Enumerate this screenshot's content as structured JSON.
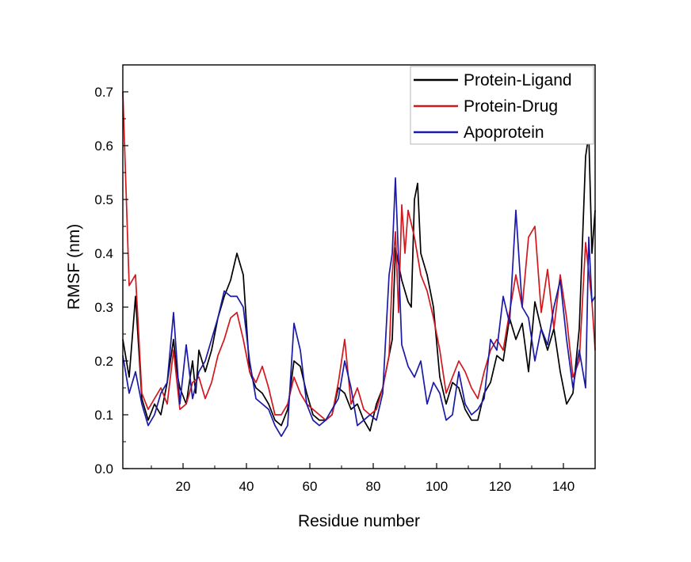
{
  "chart_data": {
    "type": "line",
    "title": "",
    "xlabel": "Residue number",
    "ylabel": "RMSF (nm)",
    "xlim": [
      1,
      150
    ],
    "ylim": [
      0.0,
      0.75
    ],
    "xticks": [
      20,
      40,
      60,
      80,
      100,
      120,
      140
    ],
    "yticks": [
      "0.0",
      "0.1",
      "0.2",
      "0.3",
      "0.4",
      "0.5",
      "0.6",
      "0.7"
    ],
    "grid": false,
    "legend_position": "top-right",
    "colors": {
      "Protein-Ligand": "#000000",
      "Protein-Drug": "#d0181e",
      "Apoprotein": "#1a1aa6"
    },
    "series": [
      {
        "name": "Protein-Ligand",
        "color": "#000000",
        "x": [
          1,
          3,
          5,
          7,
          9,
          11,
          13,
          15,
          17,
          18,
          19,
          21,
          23,
          24,
          25,
          27,
          29,
          31,
          33,
          35,
          37,
          39,
          41,
          43,
          45,
          47,
          49,
          51,
          53,
          55,
          57,
          59,
          61,
          63,
          65,
          67,
          69,
          71,
          73,
          75,
          77,
          79,
          81,
          83,
          85,
          86,
          87,
          89,
          91,
          92,
          93,
          94,
          95,
          97,
          99,
          101,
          103,
          105,
          107,
          109,
          111,
          113,
          115,
          117,
          119,
          121,
          123,
          125,
          127,
          129,
          131,
          133,
          135,
          137,
          139,
          141,
          143,
          145,
          147,
          148,
          149,
          150
        ],
        "values": [
          0.24,
          0.17,
          0.32,
          0.13,
          0.09,
          0.12,
          0.1,
          0.16,
          0.24,
          0.18,
          0.15,
          0.12,
          0.2,
          0.14,
          0.22,
          0.18,
          0.22,
          0.28,
          0.32,
          0.35,
          0.4,
          0.36,
          0.18,
          0.15,
          0.14,
          0.12,
          0.09,
          0.08,
          0.11,
          0.2,
          0.19,
          0.14,
          0.1,
          0.09,
          0.09,
          0.1,
          0.15,
          0.14,
          0.11,
          0.12,
          0.09,
          0.07,
          0.12,
          0.15,
          0.21,
          0.24,
          0.41,
          0.35,
          0.31,
          0.3,
          0.5,
          0.53,
          0.4,
          0.36,
          0.3,
          0.17,
          0.12,
          0.16,
          0.15,
          0.11,
          0.09,
          0.09,
          0.14,
          0.16,
          0.21,
          0.2,
          0.28,
          0.24,
          0.27,
          0.18,
          0.31,
          0.26,
          0.22,
          0.26,
          0.18,
          0.12,
          0.14,
          0.26,
          0.58,
          0.62,
          0.4,
          0.48
        ]
      },
      {
        "name": "Protein-Drug",
        "color": "#d0181e",
        "x": [
          1,
          3,
          5,
          7,
          9,
          11,
          13,
          15,
          17,
          19,
          21,
          23,
          25,
          27,
          29,
          31,
          33,
          35,
          37,
          39,
          41,
          43,
          45,
          47,
          49,
          51,
          53,
          55,
          57,
          59,
          61,
          63,
          65,
          67,
          69,
          71,
          73,
          75,
          77,
          79,
          81,
          83,
          85,
          86,
          87,
          88,
          89,
          90,
          91,
          93,
          95,
          97,
          99,
          101,
          103,
          105,
          107,
          109,
          111,
          113,
          115,
          117,
          119,
          121,
          123,
          125,
          127,
          129,
          131,
          133,
          135,
          137,
          139,
          141,
          143,
          145,
          147,
          149,
          150
        ],
        "values": [
          0.7,
          0.34,
          0.36,
          0.14,
          0.11,
          0.13,
          0.15,
          0.12,
          0.22,
          0.11,
          0.12,
          0.16,
          0.17,
          0.13,
          0.16,
          0.21,
          0.24,
          0.28,
          0.29,
          0.24,
          0.18,
          0.16,
          0.19,
          0.15,
          0.1,
          0.1,
          0.12,
          0.17,
          0.14,
          0.12,
          0.11,
          0.1,
          0.09,
          0.1,
          0.16,
          0.24,
          0.12,
          0.15,
          0.11,
          0.1,
          0.11,
          0.15,
          0.21,
          0.36,
          0.44,
          0.29,
          0.49,
          0.4,
          0.48,
          0.43,
          0.36,
          0.33,
          0.28,
          0.22,
          0.14,
          0.17,
          0.2,
          0.18,
          0.15,
          0.13,
          0.18,
          0.22,
          0.24,
          0.22,
          0.29,
          0.36,
          0.3,
          0.43,
          0.45,
          0.29,
          0.37,
          0.26,
          0.36,
          0.28,
          0.17,
          0.2,
          0.42,
          0.31,
          0.22
        ]
      },
      {
        "name": "Apoprotein",
        "color": "#1a1aa6",
        "x": [
          1,
          3,
          5,
          7,
          9,
          11,
          13,
          15,
          17,
          19,
          21,
          23,
          25,
          27,
          29,
          31,
          33,
          35,
          37,
          39,
          41,
          43,
          45,
          47,
          49,
          51,
          53,
          55,
          57,
          59,
          61,
          63,
          65,
          67,
          69,
          71,
          73,
          75,
          77,
          79,
          81,
          83,
          85,
          86,
          87,
          89,
          91,
          93,
          95,
          97,
          99,
          101,
          103,
          105,
          107,
          109,
          111,
          113,
          115,
          117,
          119,
          121,
          123,
          125,
          127,
          129,
          131,
          133,
          135,
          137,
          139,
          141,
          143,
          145,
          147,
          148,
          149,
          150
        ],
        "values": [
          0.21,
          0.14,
          0.18,
          0.12,
          0.08,
          0.1,
          0.14,
          0.16,
          0.29,
          0.12,
          0.23,
          0.13,
          0.18,
          0.2,
          0.24,
          0.28,
          0.33,
          0.32,
          0.32,
          0.3,
          0.2,
          0.13,
          0.12,
          0.11,
          0.08,
          0.06,
          0.08,
          0.27,
          0.22,
          0.12,
          0.09,
          0.08,
          0.09,
          0.11,
          0.13,
          0.2,
          0.15,
          0.08,
          0.09,
          0.1,
          0.09,
          0.14,
          0.36,
          0.4,
          0.54,
          0.23,
          0.19,
          0.17,
          0.2,
          0.12,
          0.16,
          0.14,
          0.09,
          0.1,
          0.18,
          0.12,
          0.1,
          0.11,
          0.13,
          0.24,
          0.22,
          0.32,
          0.27,
          0.48,
          0.3,
          0.28,
          0.2,
          0.26,
          0.23,
          0.3,
          0.35,
          0.24,
          0.15,
          0.22,
          0.15,
          0.43,
          0.31,
          0.32
        ]
      }
    ]
  }
}
